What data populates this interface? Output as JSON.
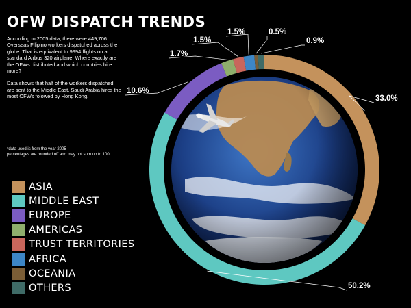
{
  "title": "OFW DISPATCH TRENDS",
  "intro": {
    "p1": "According to 2005 data, there were 449,706 Overseas Filipino workers dispatched across the globe. That is equivalent to 9994 flights on a standard Airbus 320 airplane. Where exactly are the OFWs distributed and which countries hire more?",
    "p2": "Data shows that half of the workers dispatched are sent to the Middle East. Saudi Arabia hires the most OFWs folowed by Hong Kong."
  },
  "note": {
    "line1": "*data used is from the year 2005",
    "line2": "percentages are rounded off and may not sum up to 100"
  },
  "chart_data": {
    "type": "pie",
    "subtype": "donut",
    "center_image": "earth-globe-with-airplane",
    "categories": [
      "ASIA",
      "MIDDLE EAST",
      "EUROPE",
      "AMERICAS",
      "TRUST TERRITORIES",
      "AFRICA",
      "OCEANIA",
      "OTHERS"
    ],
    "values": [
      33.0,
      50.2,
      10.6,
      1.7,
      1.5,
      1.5,
      0.5,
      0.9
    ],
    "value_labels": [
      "33.0%",
      "50.2%",
      "10.6%",
      "1.7%",
      "1.5%",
      "1.5%",
      "0.5%",
      "0.9%"
    ],
    "colors": [
      "#c4925c",
      "#5ec8c1",
      "#7b5cc2",
      "#8fae6c",
      "#c9665c",
      "#3d86c6",
      "#7a5d36",
      "#3f6b67"
    ],
    "legend_position": "bottom-left"
  }
}
